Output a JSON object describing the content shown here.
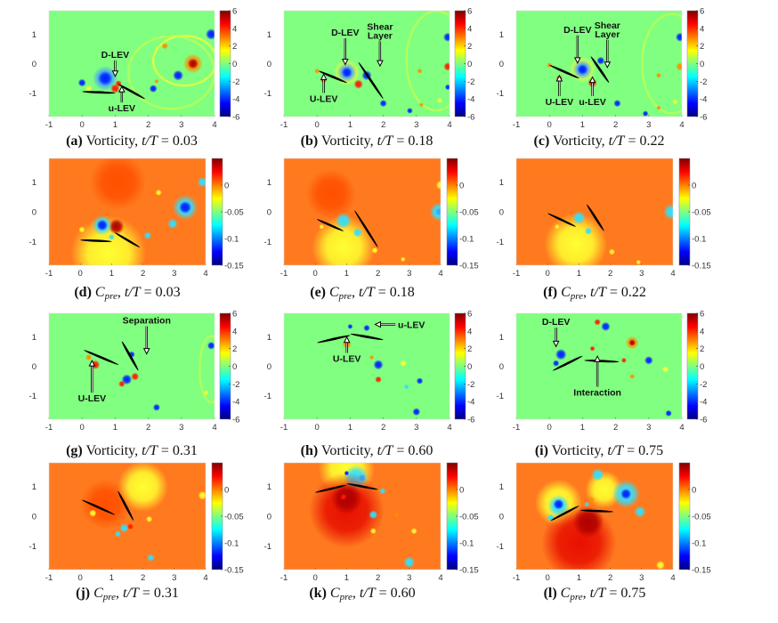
{
  "figure": {
    "x_ticks": [
      "-1",
      "0",
      "1",
      "2",
      "3",
      "4"
    ],
    "y_ticks": [
      "1",
      "0",
      "-1"
    ],
    "x_range": [
      -1,
      4
    ],
    "y_range": [
      -1.8,
      1.8
    ],
    "colorbars": {
      "vorticity": {
        "colormap": "jet",
        "range": [
          -6,
          6
        ],
        "ticks": [
          "6",
          "4",
          "2",
          "0",
          "-2",
          "-4",
          "-6"
        ]
      },
      "cpre": {
        "colormap": "jet",
        "range": [
          -0.15,
          0.05
        ],
        "ticks": [
          "0",
          "-0.05",
          "-0.1",
          "-0.15"
        ]
      }
    },
    "colors": {
      "vorticity_background": "#80ff80",
      "cpre_background": "#ff7a1f",
      "airfoil": "#000000"
    },
    "panels": [
      {
        "id": "a",
        "type": "vorticity",
        "caption": {
          "label": "(a)",
          "quantity": "Vorticity",
          "var": "t/T",
          "eq": " = 0.03"
        },
        "annotations": [
          "D-LEV",
          "u-LEV"
        ]
      },
      {
        "id": "b",
        "type": "vorticity",
        "caption": {
          "label": "(b)",
          "quantity": "Vorticity",
          "var": "t/T",
          "eq": " = 0.18"
        },
        "annotations": [
          "D-LEV",
          "Shear",
          "Layer",
          "U-LEV"
        ]
      },
      {
        "id": "c",
        "type": "vorticity",
        "caption": {
          "label": "(c)",
          "quantity": "Vorticity",
          "var": "t/T",
          "eq": " = 0.22"
        },
        "annotations": [
          "D-LEV",
          "Shear",
          "Layer",
          "U-LEV",
          "u-LEV"
        ]
      },
      {
        "id": "d",
        "type": "cpre",
        "caption": {
          "label": "(d)",
          "quantity": "C",
          "sub": "pre",
          "var": "t/T",
          "eq": " = 0.03"
        },
        "annotations": []
      },
      {
        "id": "e",
        "type": "cpre",
        "caption": {
          "label": "(e)",
          "quantity": "C",
          "sub": "pre",
          "var": "t/T",
          "eq": " = 0.18"
        },
        "annotations": []
      },
      {
        "id": "f",
        "type": "cpre",
        "caption": {
          "label": "(f)",
          "quantity": "C",
          "sub": "pre",
          "var": "t/T",
          "eq": " = 0.22"
        },
        "annotations": []
      },
      {
        "id": "g",
        "type": "vorticity",
        "caption": {
          "label": "(g)",
          "quantity": "Vorticity",
          "var": "t/T",
          "eq": " = 0.31"
        },
        "annotations": [
          "Separation",
          "U-LEV"
        ]
      },
      {
        "id": "h",
        "type": "vorticity",
        "caption": {
          "label": "(h)",
          "quantity": "Vorticity",
          "var": "t/T",
          "eq": " = 0.60"
        },
        "annotations": [
          "u-LEV",
          "U-LEV"
        ]
      },
      {
        "id": "i",
        "type": "vorticity",
        "caption": {
          "label": "(i)",
          "quantity": "Vorticity",
          "var": "t/T",
          "eq": " = 0.75"
        },
        "annotations": [
          "D-LEV",
          "Interaction"
        ]
      },
      {
        "id": "j",
        "type": "cpre",
        "caption": {
          "label": "(j)",
          "quantity": "C",
          "sub": "pre",
          "var": "t/T",
          "eq": " = 0.31"
        },
        "annotations": []
      },
      {
        "id": "k",
        "type": "cpre",
        "caption": {
          "label": "(k)",
          "quantity": "C",
          "sub": "pre",
          "var": "t/T",
          "eq": " = 0.60"
        },
        "annotations": []
      },
      {
        "id": "l",
        "type": "cpre",
        "caption": {
          "label": "(l)",
          "quantity": "C",
          "sub": "pre",
          "var": "t/T",
          "eq": " = 0.75"
        },
        "annotations": []
      }
    ]
  }
}
